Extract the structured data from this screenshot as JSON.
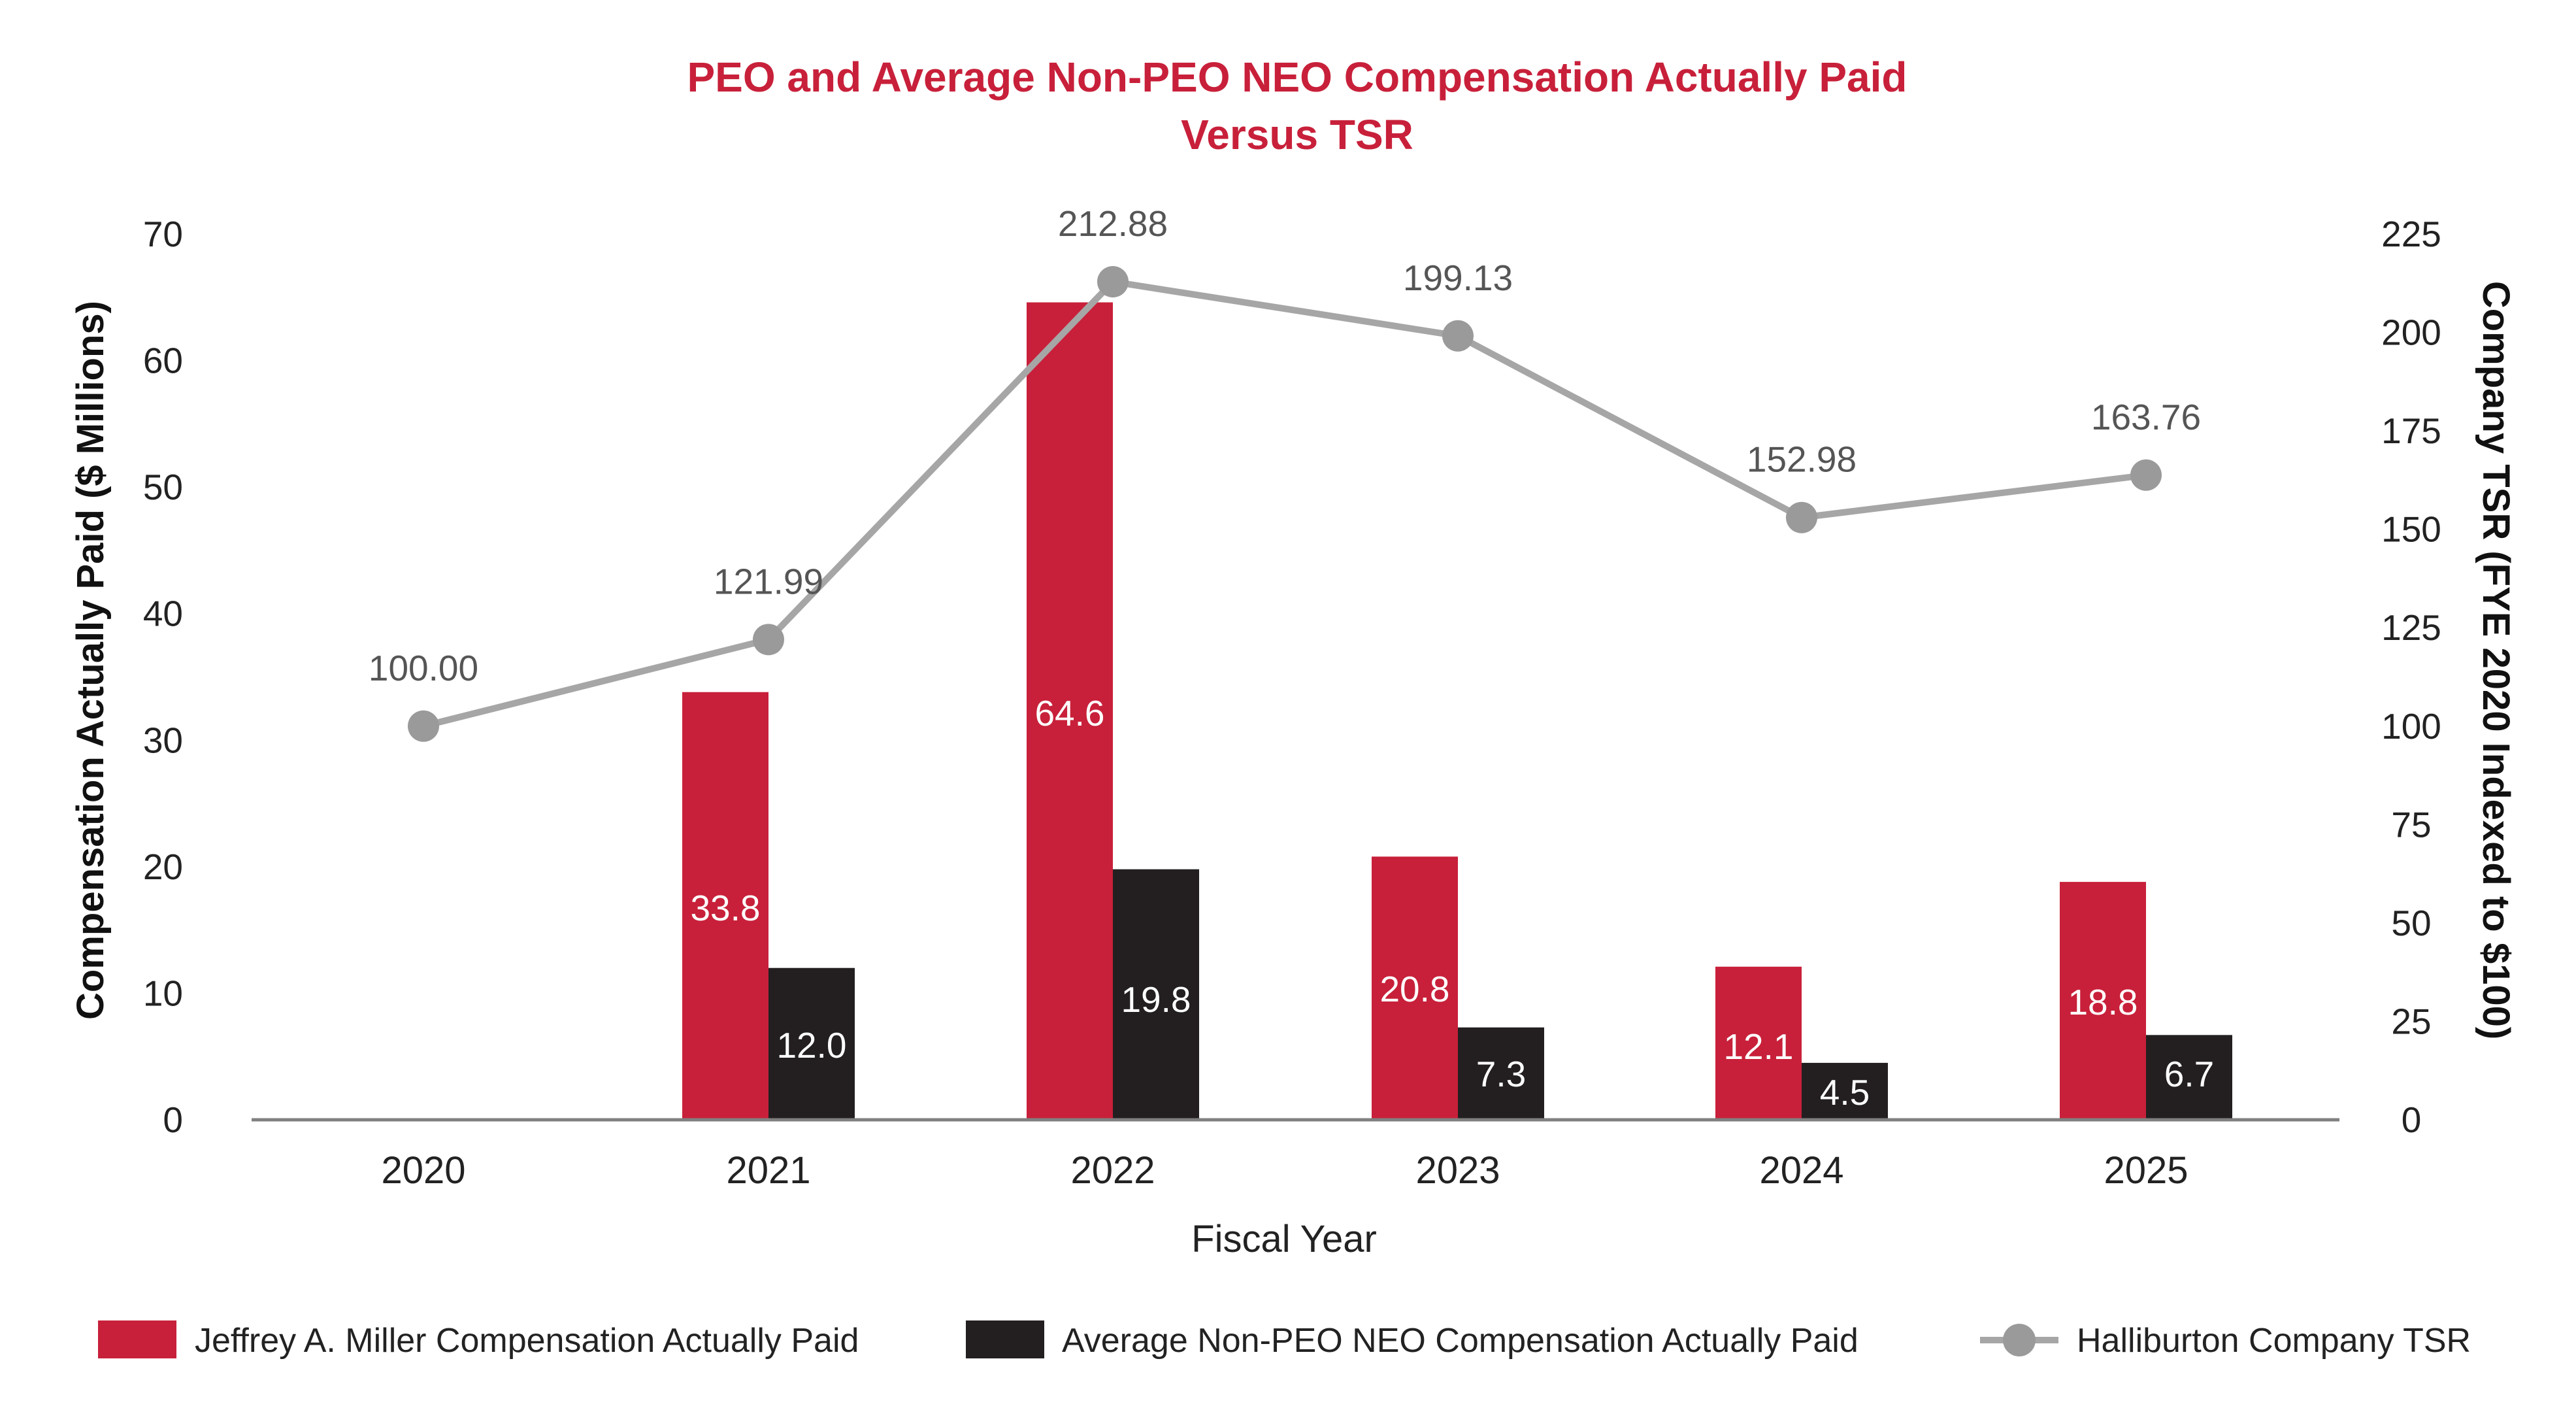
{
  "chart_data": {
    "type": "bar",
    "title_line1": "PEO and Average Non-PEO NEO Compensation Actually Paid",
    "title_line2": "Versus TSR",
    "xlabel": "Fiscal Year",
    "ylabel": "Compensation Actually Paid ($ Millions)",
    "y2label": "Company TSR (FYE 2020 Indexed to $100)",
    "categories": [
      "2020",
      "2021",
      "2022",
      "2023",
      "2024",
      "2025"
    ],
    "ylim": [
      0,
      70
    ],
    "yticks": [
      "0",
      "10",
      "20",
      "30",
      "40",
      "50",
      "60",
      "70"
    ],
    "y2lim": [
      0,
      225
    ],
    "y2ticks": [
      "0",
      "25",
      "50",
      "75",
      "100",
      "125",
      "150",
      "175",
      "200",
      "225"
    ],
    "series": [
      {
        "name": "Jeffrey A. Miller Compensation Actually Paid",
        "type": "bar",
        "axis": "left",
        "color": "#C8203A",
        "values": [
          null,
          33.8,
          64.6,
          20.8,
          12.1,
          18.8
        ],
        "labels": [
          "",
          "33.8",
          "64.6",
          "20.8",
          "12.1",
          "18.8"
        ]
      },
      {
        "name": "Average Non-PEO NEO Compensation Actually Paid",
        "type": "bar",
        "axis": "left",
        "color": "#231F20",
        "values": [
          null,
          12.0,
          19.8,
          7.3,
          4.5,
          6.7
        ],
        "labels": [
          "",
          "12.0",
          "19.8",
          "7.3",
          "4.5",
          "6.7"
        ]
      },
      {
        "name": "Halliburton Company TSR",
        "type": "line",
        "axis": "right",
        "color": "#A6A6A6",
        "values": [
          100.0,
          121.99,
          212.88,
          199.13,
          152.98,
          163.76
        ],
        "labels": [
          "100.00",
          "121.99",
          "212.88",
          "199.13",
          "152.98",
          "163.76"
        ]
      }
    ],
    "legend_position": "bottom",
    "grid": false
  },
  "colors": {
    "title": "#C8203A",
    "axis_line": "#808080"
  }
}
